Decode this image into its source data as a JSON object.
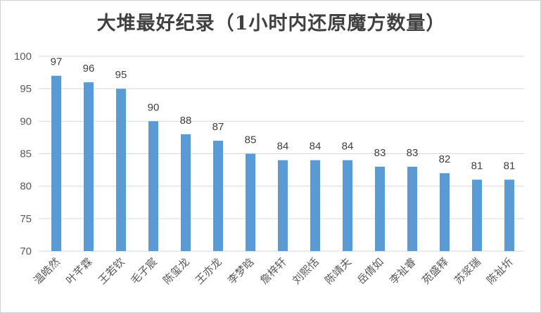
{
  "chart_data": {
    "type": "bar",
    "title": "大堆最好纪录（1小时内还原魔方数量）",
    "categories": [
      "温皓然",
      "叶芊霖",
      "王若钦",
      "毛子宸",
      "陈玺龙",
      "王亦龙",
      "李梦晗",
      "詹梓轩",
      "刘熙恬",
      "陈靖夫",
      "岳倩如",
      "李祉睿",
      "苑盛释",
      "苏浆瑞",
      "陈祉圻"
    ],
    "values": [
      97,
      96,
      95,
      90,
      88,
      87,
      85,
      84,
      84,
      84,
      83,
      83,
      82,
      81,
      81
    ],
    "ylim": [
      70,
      100
    ],
    "yticks": [
      70,
      75,
      80,
      85,
      90,
      95,
      100
    ],
    "grid": true,
    "legend": "none",
    "bar_color": "#5b9bd5",
    "gridline_color": "#d9d9d9"
  }
}
